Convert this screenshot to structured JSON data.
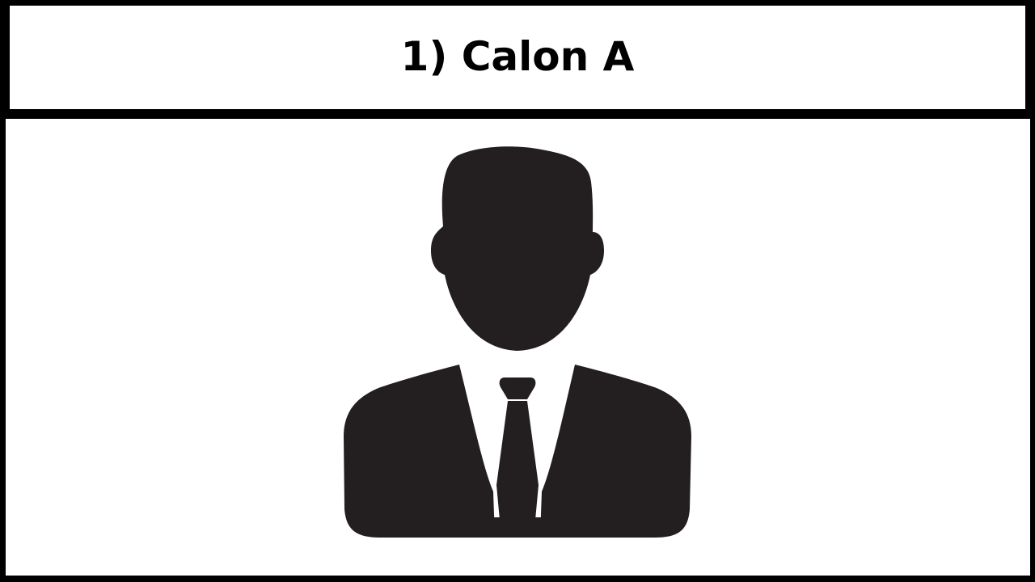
{
  "slide": {
    "title": "1) Calon A",
    "avatar_icon": "person-silhouette-icon",
    "colors": {
      "frame": "#000000",
      "panel": "#ffffff",
      "silhouette": "#231f20"
    }
  }
}
